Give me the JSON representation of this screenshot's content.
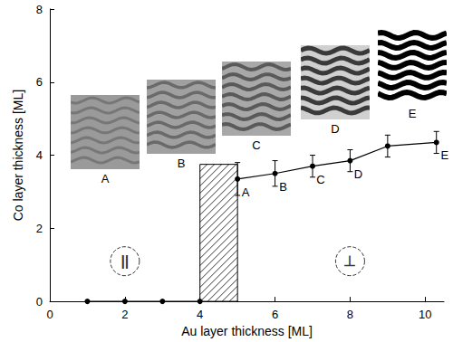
{
  "chart_data": {
    "type": "line",
    "x_label": "Au layer thickness [ML]",
    "y_label": "Co layer thickness [ML]",
    "xlim": [
      0,
      10.5
    ],
    "xticks": [
      0,
      2,
      4,
      6,
      8,
      10
    ],
    "ylim": [
      0,
      8
    ],
    "yticks": [
      0,
      2,
      4,
      6,
      8
    ],
    "grid": false,
    "series": [
      {
        "color": "#000000",
        "marker": "circle",
        "x": [
          1,
          2,
          3,
          4
        ],
        "values": [
          0,
          0,
          0,
          0
        ]
      },
      {
        "color": "#000000",
        "marker": "circle",
        "x": [
          5,
          6,
          7,
          8,
          9,
          10.3
        ],
        "values": [
          3.35,
          3.5,
          3.7,
          3.85,
          4.25,
          4.35
        ],
        "errors": [
          0.45,
          0.35,
          0.3,
          0.3,
          0.3,
          0.3
        ],
        "point_labels": [
          "A",
          "B",
          "C",
          "D",
          null,
          "E"
        ]
      }
    ],
    "hatched_region": {
      "x": [
        4,
        5
      ],
      "y": [
        0,
        3.75
      ]
    },
    "annotations": [
      {
        "text": "||",
        "x": 2,
        "y": 1.1
      },
      {
        "text": "⊥",
        "x": 8,
        "y": 1.1
      }
    ],
    "inset_labels": [
      "A",
      "B",
      "C",
      "D",
      "E"
    ]
  }
}
